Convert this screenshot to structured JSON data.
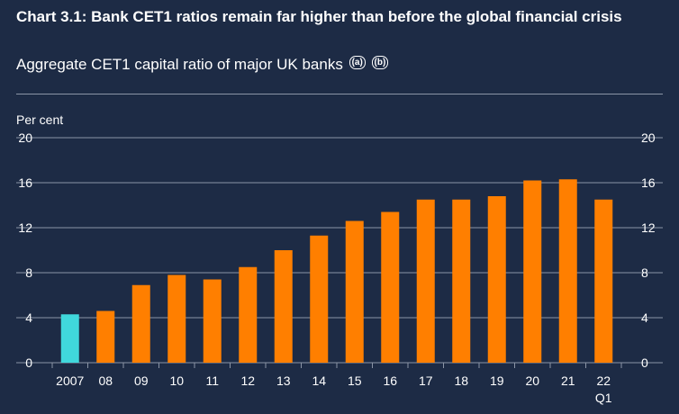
{
  "title": "Chart 3.1: Bank CET1 ratios remain far higher than before the global financial crisis",
  "subtitle": "Aggregate CET1 capital ratio of major UK banks",
  "footnotes": [
    "(a)",
    "(b)"
  ],
  "colors": {
    "background": "#1d2b45",
    "highlight_bar": "#40d8dc",
    "bar": "#ff7f00",
    "grid": "#8b95a6"
  },
  "chart_data": {
    "type": "bar",
    "categories": [
      "2007",
      "08",
      "09",
      "10",
      "11",
      "12",
      "13",
      "14",
      "15",
      "16",
      "17",
      "18",
      "19",
      "20",
      "21",
      "22\nQ1"
    ],
    "values": [
      4.3,
      4.6,
      6.9,
      7.8,
      7.4,
      8.5,
      10.0,
      11.3,
      12.6,
      13.4,
      14.5,
      14.5,
      14.8,
      16.2,
      16.3,
      14.5
    ],
    "highlight_index": 0,
    "ylabel": "Per cent",
    "ylim": [
      0,
      20
    ],
    "yticks": [
      0,
      4,
      8,
      12,
      16,
      20
    ],
    "grid": true,
    "y_axis": "both sides"
  }
}
